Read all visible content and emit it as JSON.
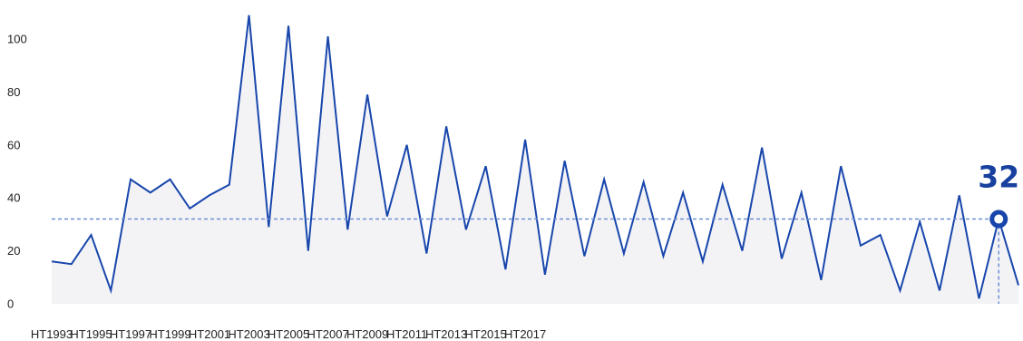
{
  "chart_data": {
    "type": "area",
    "x_tick_labels": [
      "HT1993",
      "HT1995",
      "HT1997",
      "HT1999",
      "HT2001",
      "HT2003",
      "HT2005",
      "HT2007",
      "HT2009",
      "HT2011",
      "HT2013",
      "HT2015",
      "HT2017"
    ],
    "y_ticks": [
      0,
      20,
      40,
      60,
      80,
      100
    ],
    "ylim": [
      0,
      110
    ],
    "grid": false,
    "title": "",
    "xlabel": "",
    "ylabel": "",
    "series": [
      {
        "values": [
          16,
          15,
          26,
          5,
          47,
          42,
          47,
          36,
          41,
          45,
          109,
          29,
          105,
          20,
          101,
          28,
          79,
          33,
          60,
          19,
          67,
          28,
          52,
          13,
          62,
          11,
          54,
          18,
          47,
          19,
          46,
          18,
          42,
          16,
          45,
          20,
          59,
          17,
          42,
          9,
          52,
          22,
          26,
          5,
          31,
          5,
          41,
          2,
          32,
          7
        ]
      }
    ],
    "highlight": {
      "index": 48,
      "value": 32,
      "label": "32"
    },
    "colors": {
      "line": "#1846ac",
      "fill": "#f3f3f5",
      "reference_line": "#6e8fd2",
      "label": "#17409f"
    }
  }
}
